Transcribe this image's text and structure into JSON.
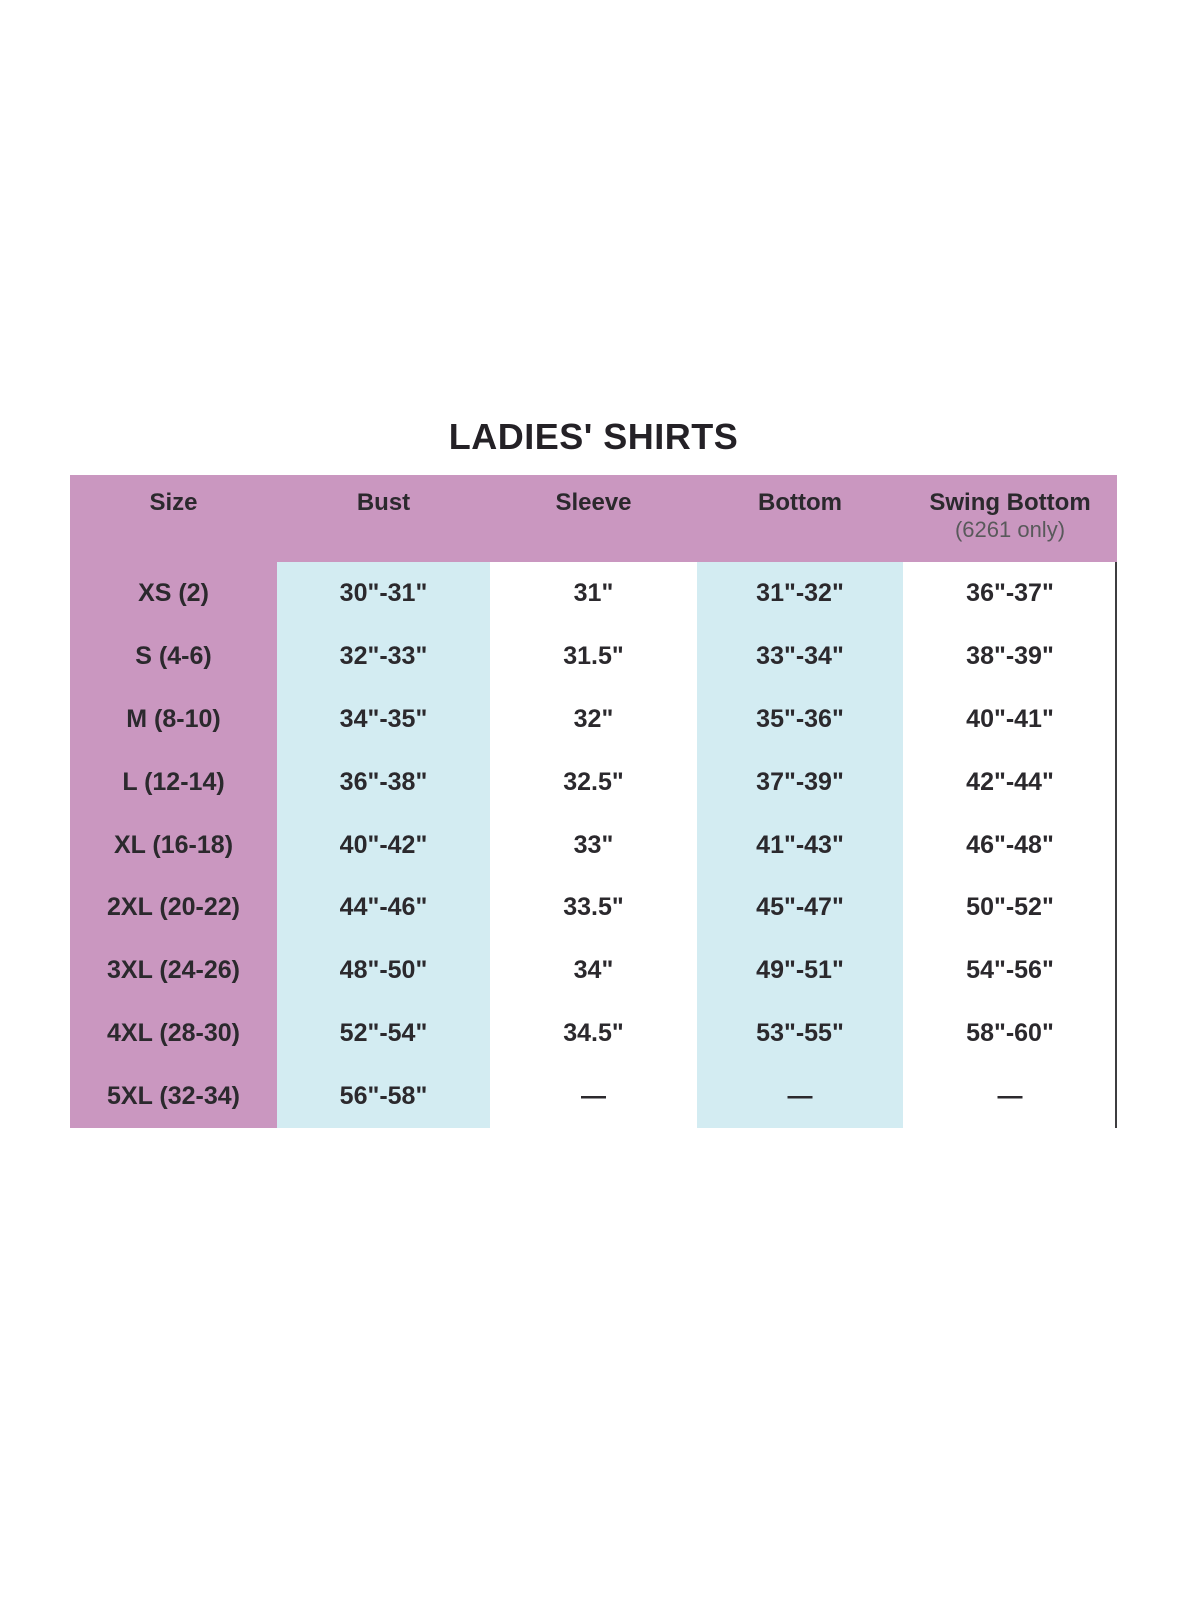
{
  "title": "LADIES' SHIRTS",
  "table": {
    "columns": [
      {
        "label": "Size",
        "sublabel": ""
      },
      {
        "label": "Bust",
        "sublabel": ""
      },
      {
        "label": "Sleeve",
        "sublabel": ""
      },
      {
        "label": "Bottom",
        "sublabel": ""
      },
      {
        "label": "Swing Bottom",
        "sublabel": "(6261 only)"
      }
    ],
    "rows": [
      {
        "size": "XS (2)",
        "bust": "30\"-31\"",
        "sleeve": "31\"",
        "bottom": "31\"-32\"",
        "swing": "36\"-37\""
      },
      {
        "size": "S (4-6)",
        "bust": "32\"-33\"",
        "sleeve": "31.5\"",
        "bottom": "33\"-34\"",
        "swing": "38\"-39\""
      },
      {
        "size": "M (8-10)",
        "bust": "34\"-35\"",
        "sleeve": "32\"",
        "bottom": "35\"-36\"",
        "swing": "40\"-41\""
      },
      {
        "size": "L (12-14)",
        "bust": "36\"-38\"",
        "sleeve": "32.5\"",
        "bottom": "37\"-39\"",
        "swing": "42\"-44\""
      },
      {
        "size": "XL (16-18)",
        "bust": "40\"-42\"",
        "sleeve": "33\"",
        "bottom": "41\"-43\"",
        "swing": "46\"-48\""
      },
      {
        "size": "2XL (20-22)",
        "bust": "44\"-46\"",
        "sleeve": "33.5\"",
        "bottom": "45\"-47\"",
        "swing": "50\"-52\""
      },
      {
        "size": "3XL (24-26)",
        "bust": "48\"-50\"",
        "sleeve": "34\"",
        "bottom": "49\"-51\"",
        "swing": "54\"-56\""
      },
      {
        "size": "4XL (28-30)",
        "bust": "52\"-54\"",
        "sleeve": "34.5\"",
        "bottom": "53\"-55\"",
        "swing": "58\"-60\""
      },
      {
        "size": "5XL (32-34)",
        "bust": "56\"-58\"",
        "sleeve": "—",
        "bottom": "—",
        "swing": "—"
      }
    ]
  },
  "colors": {
    "header_pink": "#ca97c0",
    "highlight_blue": "#d3ecf2",
    "text_dark": "#2b292d",
    "subtext_gray": "#59595b",
    "border_dark": "#3e3d40"
  },
  "chart_data": {
    "type": "table",
    "title": "LADIES' SHIRTS",
    "columns": [
      "Size",
      "Bust",
      "Sleeve",
      "Bottom",
      "Swing Bottom (6261 only)"
    ],
    "rows": [
      [
        "XS (2)",
        "30\"-31\"",
        "31\"",
        "31\"-32\"",
        "36\"-37\""
      ],
      [
        "S (4-6)",
        "32\"-33\"",
        "31.5\"",
        "33\"-34\"",
        "38\"-39\""
      ],
      [
        "M (8-10)",
        "34\"-35\"",
        "32\"",
        "35\"-36\"",
        "40\"-41\""
      ],
      [
        "L (12-14)",
        "36\"-38\"",
        "32.5\"",
        "37\"-39\"",
        "42\"-44\""
      ],
      [
        "XL (16-18)",
        "40\"-42\"",
        "33\"",
        "41\"-43\"",
        "46\"-48\""
      ],
      [
        "2XL (20-22)",
        "44\"-46\"",
        "33.5\"",
        "45\"-47\"",
        "50\"-52\""
      ],
      [
        "3XL (24-26)",
        "48\"-50\"",
        "34\"",
        "49\"-51\"",
        "54\"-56\""
      ],
      [
        "4XL (28-30)",
        "52\"-54\"",
        "34.5\"",
        "53\"-55\"",
        "58\"-60\""
      ],
      [
        "5XL (32-34)",
        "56\"-58\"",
        "—",
        "—",
        "—"
      ]
    ],
    "layout_hints": {
      "highlighted_columns": [
        "Bust",
        "Bottom"
      ],
      "header_fill": "#ca97c0",
      "size_column_fill": "#ca97c0",
      "highlight_fill": "#d3ecf2"
    }
  }
}
